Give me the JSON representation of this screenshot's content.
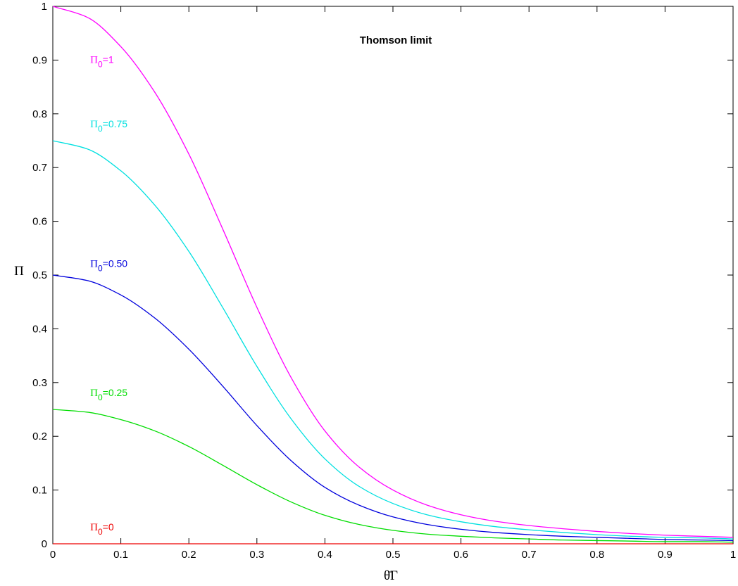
{
  "chart_data": {
    "type": "line",
    "title": "Thomson limit",
    "xlabel": "θ̄Γ",
    "ylabel": "Π",
    "xlim": [
      0,
      1
    ],
    "ylim": [
      0,
      1
    ],
    "xticks": [
      "0",
      "0.1",
      "0.2",
      "0.3",
      "0.4",
      "0.5",
      "0.6",
      "0.7",
      "0.8",
      "0.9",
      "1"
    ],
    "yticks": [
      "0",
      "0.1",
      "0.2",
      "0.3",
      "0.4",
      "0.5",
      "0.6",
      "0.7",
      "0.8",
      "0.9",
      "1"
    ],
    "grid": false,
    "x": [
      0,
      0.05,
      0.1,
      0.15,
      0.2,
      0.25,
      0.3,
      0.35,
      0.4,
      0.45,
      0.5,
      0.55,
      0.6,
      0.65,
      0.7,
      0.75,
      0.8,
      0.85,
      0.9,
      0.95,
      1.0
    ],
    "series": [
      {
        "name": "Π0=1",
        "color": "#ff00ff",
        "label_pos": [
          0.055,
          0.9
        ],
        "values": [
          1.0,
          0.98,
          0.925,
          0.84,
          0.725,
          0.585,
          0.44,
          0.31,
          0.21,
          0.143,
          0.1,
          0.072,
          0.054,
          0.042,
          0.034,
          0.028,
          0.023,
          0.019,
          0.016,
          0.014,
          0.012
        ]
      },
      {
        "name": "Π0=0.75",
        "color": "#00e0e0",
        "label_pos": [
          0.055,
          0.78
        ],
        "values": [
          0.75,
          0.735,
          0.694,
          0.63,
          0.544,
          0.439,
          0.33,
          0.233,
          0.158,
          0.107,
          0.075,
          0.054,
          0.041,
          0.032,
          0.026,
          0.021,
          0.017,
          0.014,
          0.012,
          0.011,
          0.009
        ]
      },
      {
        "name": "Π0=0.50",
        "color": "#0000dd",
        "label_pos": [
          0.055,
          0.52
        ],
        "values": [
          0.5,
          0.49,
          0.463,
          0.42,
          0.362,
          0.293,
          0.22,
          0.155,
          0.105,
          0.072,
          0.05,
          0.036,
          0.027,
          0.021,
          0.017,
          0.014,
          0.012,
          0.01,
          0.008,
          0.007,
          0.006
        ]
      },
      {
        "name": "Π0=0.25",
        "color": "#00dd00",
        "label_pos": [
          0.055,
          0.28
        ],
        "values": [
          0.25,
          0.245,
          0.231,
          0.21,
          0.181,
          0.146,
          0.11,
          0.078,
          0.053,
          0.036,
          0.025,
          0.018,
          0.014,
          0.011,
          0.009,
          0.007,
          0.006,
          0.005,
          0.004,
          0.004,
          0.003
        ]
      },
      {
        "name": "Π0=0",
        "color": "#ee0000",
        "label_pos": [
          0.055,
          0.03
        ],
        "values": [
          0,
          0,
          0,
          0,
          0,
          0,
          0,
          0,
          0,
          0,
          0,
          0,
          0,
          0,
          0,
          0,
          0,
          0,
          0,
          0,
          0
        ]
      }
    ]
  }
}
